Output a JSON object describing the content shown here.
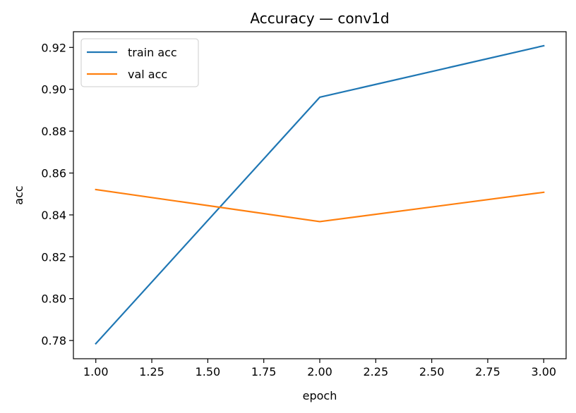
{
  "chart_data": {
    "type": "line",
    "title": "Accuracy — conv1d",
    "xlabel": "epoch",
    "ylabel": "acc",
    "x": [
      1.0,
      2.0,
      3.0
    ],
    "xlim": [
      0.9,
      3.1
    ],
    "ylim": [
      0.7713,
      0.9275
    ],
    "xticks": [
      1.0,
      1.25,
      1.5,
      1.75,
      2.0,
      2.25,
      2.5,
      2.75,
      3.0
    ],
    "xtick_labels": [
      "1.00",
      "1.25",
      "1.50",
      "1.75",
      "2.00",
      "2.25",
      "2.50",
      "2.75",
      "3.00"
    ],
    "yticks": [
      0.78,
      0.8,
      0.82,
      0.84,
      0.86,
      0.88,
      0.9,
      0.92
    ],
    "ytick_labels": [
      "0.78",
      "0.80",
      "0.82",
      "0.84",
      "0.86",
      "0.88",
      "0.90",
      "0.92"
    ],
    "grid": false,
    "legend_position": "top-left",
    "series": [
      {
        "name": "train acc",
        "color": "#1f77b4",
        "values": [
          0.7785,
          0.8962,
          0.9208
        ]
      },
      {
        "name": "val acc",
        "color": "#ff7f0e",
        "values": [
          0.8521,
          0.8368,
          0.8508
        ]
      }
    ]
  }
}
